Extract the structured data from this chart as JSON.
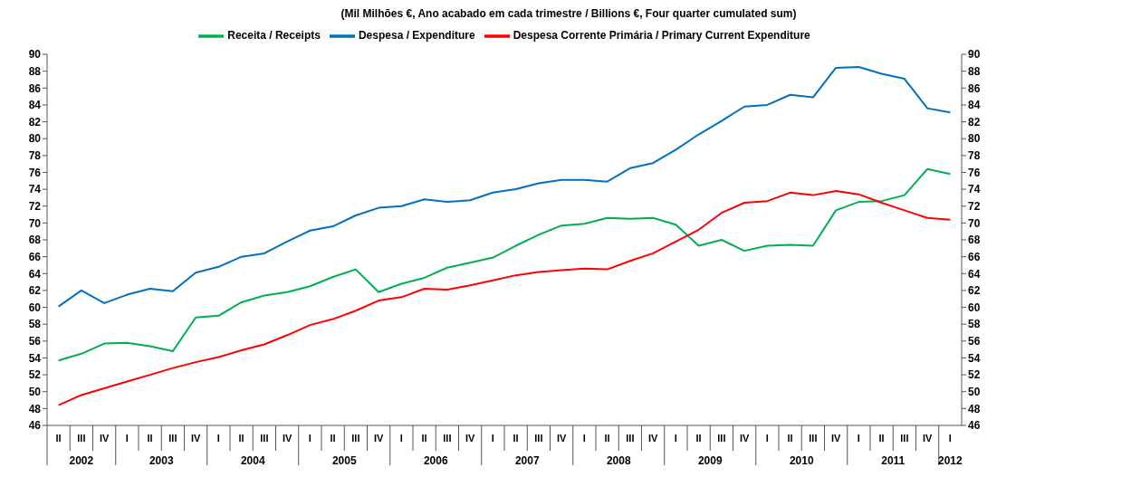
{
  "chart_data": {
    "type": "line",
    "title": "(Mil Milhões €, Ano acabado em cada trimestre / Billions €, Four quarter cumulated sum)",
    "categories": [
      "II",
      "III",
      "IV",
      "I",
      "II",
      "III",
      "IV",
      "I",
      "II",
      "III",
      "IV",
      "I",
      "II",
      "III",
      "IV",
      "I",
      "II",
      "III",
      "IV",
      "I",
      "II",
      "III",
      "IV",
      "I",
      "II",
      "III",
      "IV",
      "I",
      "II",
      "III",
      "IV",
      "I",
      "II",
      "III",
      "IV",
      "I",
      "II",
      "III",
      "IV",
      "I"
    ],
    "annotations": [
      "2002",
      "2003",
      "2004",
      "2005",
      "2006",
      "2007",
      "2008",
      "2009",
      "2010",
      "2011",
      "2012"
    ],
    "series": [
      {
        "name": "Receita / Receipts",
        "color": "#00b050",
        "values": [
          53.7,
          54.5,
          55.7,
          55.8,
          55.4,
          54.8,
          58.8,
          59.0,
          60.6,
          61.4,
          61.8,
          62.5,
          63.6,
          64.5,
          61.8,
          62.8,
          63.5,
          64.7,
          65.3,
          65.9,
          67.3,
          68.6,
          69.7,
          69.9,
          70.6,
          70.5,
          70.6,
          69.8,
          67.3,
          68.0,
          66.7,
          67.3,
          67.4,
          67.3,
          71.5,
          72.5,
          72.6,
          73.3,
          76.4,
          75.8
        ]
      },
      {
        "name": "Despesa / Expenditure",
        "color": "#0070c0",
        "values": [
          60.1,
          62.0,
          60.5,
          61.5,
          62.2,
          61.9,
          64.1,
          64.8,
          66.0,
          66.4,
          67.8,
          69.1,
          69.6,
          70.9,
          71.8,
          72.0,
          72.8,
          72.5,
          72.7,
          73.6,
          74.0,
          74.7,
          75.1,
          75.1,
          74.9,
          76.5,
          77.1,
          78.7,
          80.5,
          82.1,
          83.8,
          84.0,
          85.2,
          84.9,
          88.4,
          88.5,
          87.7,
          87.1,
          83.6,
          83.1
        ]
      },
      {
        "name": "Despesa Corrente Primária / Primary Current Expenditure",
        "color": "#ff0000",
        "values": [
          48.4,
          49.6,
          50.4,
          51.2,
          52.0,
          52.8,
          53.5,
          54.1,
          54.9,
          55.6,
          56.7,
          57.9,
          58.6,
          59.6,
          60.8,
          61.2,
          62.2,
          62.1,
          62.6,
          63.2,
          63.8,
          64.2,
          64.4,
          64.6,
          64.5,
          65.5,
          66.4,
          67.8,
          69.2,
          71.2,
          72.4,
          72.6,
          73.6,
          73.3,
          73.8,
          73.4,
          72.4,
          71.5,
          70.6,
          70.4
        ]
      }
    ],
    "ylim": [
      46,
      90
    ],
    "yticks": [
      46,
      48,
      50,
      52,
      54,
      56,
      58,
      60,
      62,
      64,
      66,
      68,
      70,
      72,
      74,
      76,
      78,
      80,
      82,
      84,
      86,
      88,
      90
    ],
    "y2lim": [
      46,
      90
    ],
    "y2ticks": [
      46,
      48,
      50,
      52,
      54,
      56,
      58,
      60,
      62,
      64,
      66,
      68,
      70,
      72,
      74,
      76,
      78,
      80,
      82,
      84,
      86,
      88,
      90
    ],
    "legend": "top",
    "grid": false,
    "marker": "none",
    "line_style": "solid"
  }
}
